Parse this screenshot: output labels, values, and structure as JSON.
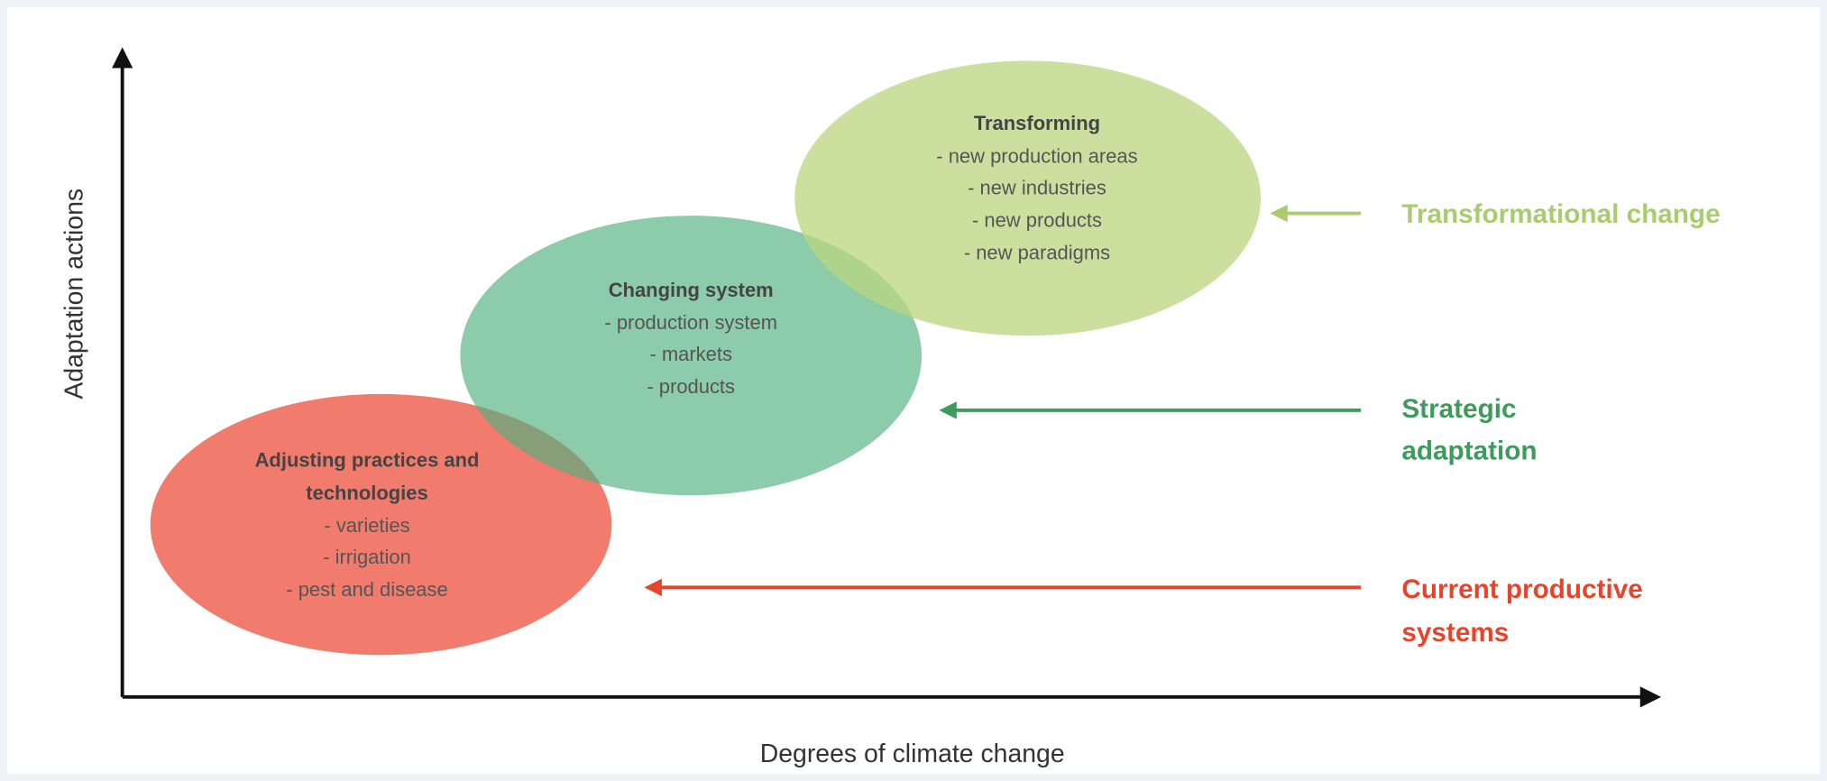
{
  "axes": {
    "y_label": "Adaptation actions",
    "x_label": "Degrees of climate change"
  },
  "ellipses": [
    {
      "title": [
        "Adjusting practices and",
        "technologies"
      ],
      "items": [
        "- varieties",
        "- irrigation",
        "- pest and disease"
      ]
    },
    {
      "title": [
        "Changing system"
      ],
      "items": [
        "- production system",
        "- markets",
        "- products"
      ]
    },
    {
      "title": [
        "Transforming"
      ],
      "items": [
        "- new production areas",
        "- new industries",
        "- new products",
        "- new paradigms"
      ]
    }
  ],
  "levels": [
    {
      "label": [
        "Current productive",
        "systems"
      ]
    },
    {
      "label": [
        "Strategic",
        "adaptation"
      ]
    },
    {
      "label": [
        "Transformational change"
      ]
    }
  ]
}
